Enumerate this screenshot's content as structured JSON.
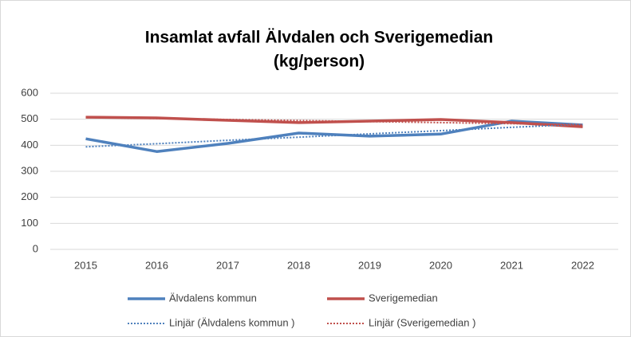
{
  "chart_data": {
    "type": "line",
    "title": "Insamlat avfall Älvdalen och Sverigemedian",
    "subtitle": "(kg/person)",
    "categories": [
      "2015",
      "2016",
      "2017",
      "2018",
      "2019",
      "2020",
      "2021",
      "2022"
    ],
    "ylim": [
      0,
      600
    ],
    "yticks": [
      0,
      100,
      200,
      300,
      400,
      500,
      600
    ],
    "grid": true,
    "series": [
      {
        "name": "Älvdalens kommun",
        "color": "#4f81bd",
        "style": "solid",
        "values": [
          425,
          376,
          407,
          447,
          435,
          443,
          493,
          478
        ]
      },
      {
        "name": "Sverigemedian",
        "color": "#c0504d",
        "style": "solid",
        "values": [
          508,
          505,
          496,
          487,
          493,
          499,
          487,
          471
        ]
      },
      {
        "name": "Linjär (Älvdalens kommun )",
        "color": "#4f81bd",
        "style": "dotted",
        "values": [
          394,
          406,
          419,
          431,
          444,
          456,
          469,
          481
        ]
      },
      {
        "name": "Linjär (Sverigemedian )",
        "color": "#c0504d",
        "style": "dotted",
        "values": [
          507,
          503,
          499,
          495,
          491,
          487,
          483,
          479
        ]
      }
    ]
  }
}
